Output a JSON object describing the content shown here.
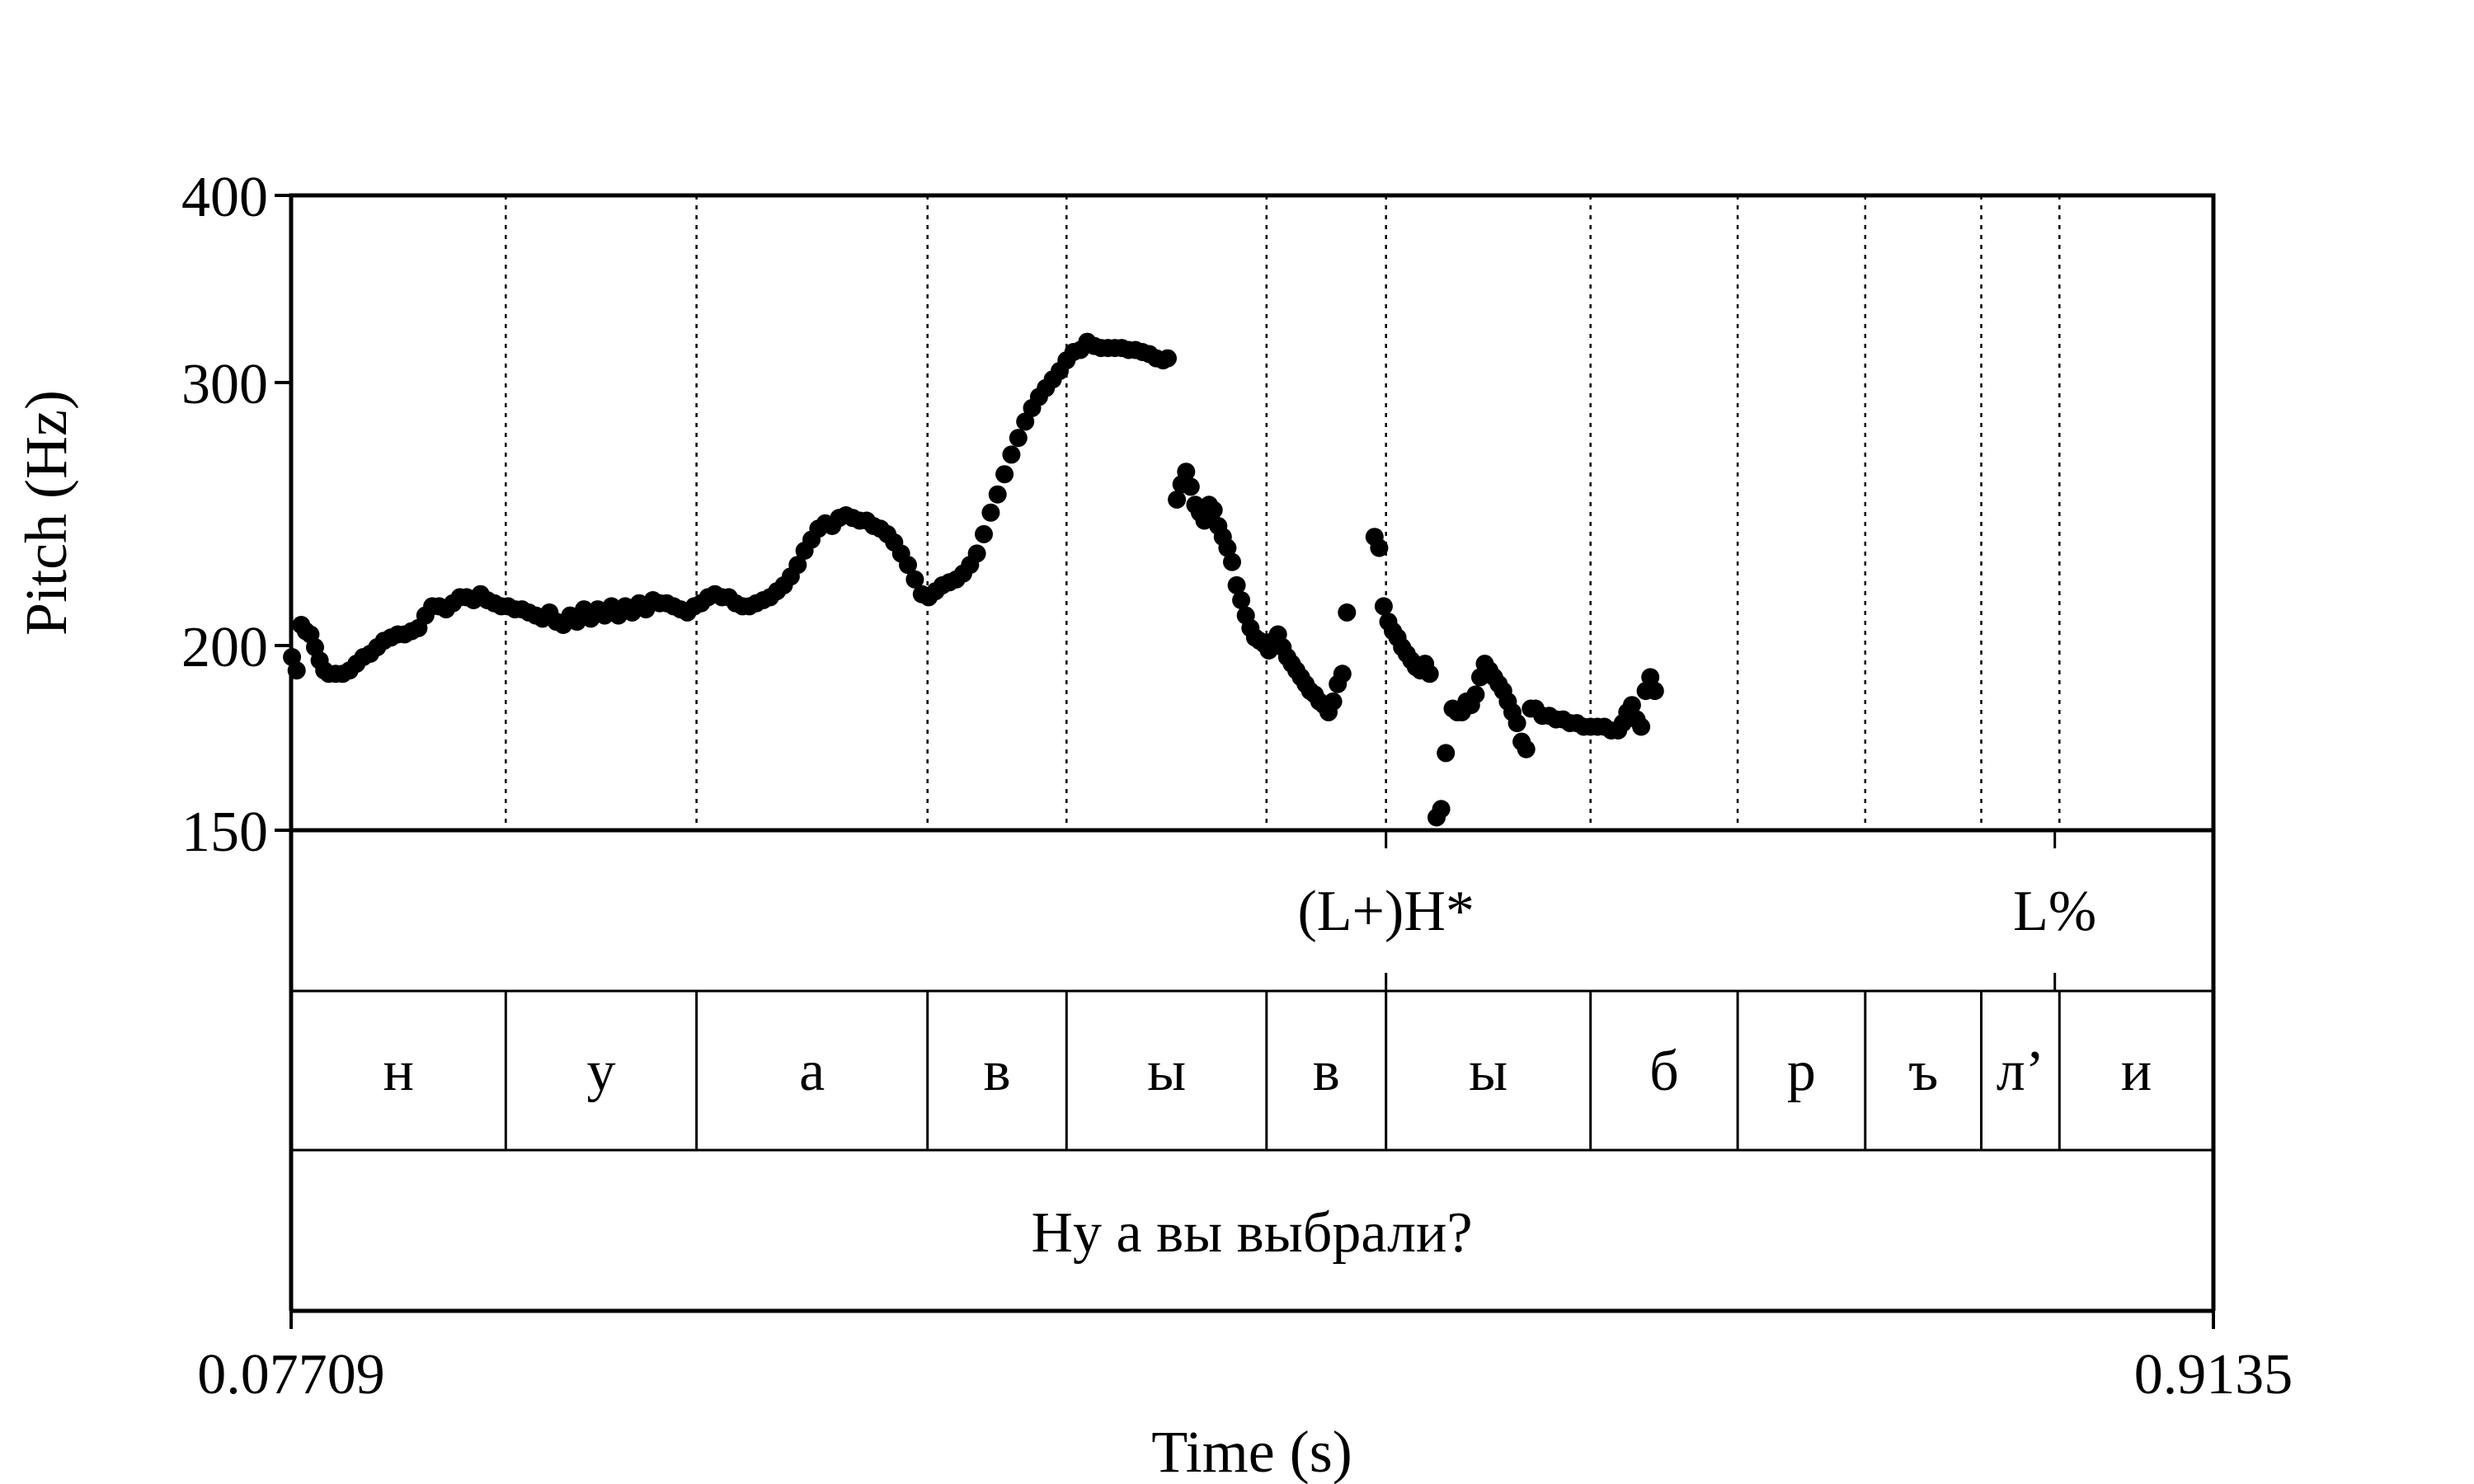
{
  "chart_data": {
    "type": "scatter",
    "title": "",
    "xlabel": "Time (s)",
    "ylabel": "Pitch (Hz)",
    "xlim": [
      0.07709,
      0.9135
    ],
    "ylim": [
      150,
      400
    ],
    "y_scale": "log",
    "x_tick_labels": [
      "0.07709",
      "0.9135"
    ],
    "y_ticks": [
      400,
      300,
      200,
      150
    ],
    "y_tick_labels": [
      "400",
      "300",
      "200",
      "150"
    ],
    "tones": {
      "labels": [
        {
          "text": "(L+)H*",
          "time": 0.5535
        },
        {
          "text": "L%",
          "time": 0.8445
        }
      ]
    },
    "segments": {
      "boundaries": [
        0.1705,
        0.2535,
        0.354,
        0.4145,
        0.5015,
        0.5535,
        0.6425,
        0.7065,
        0.762,
        0.8125,
        0.8465
      ],
      "labels": [
        "н",
        "у",
        "а",
        "в",
        "ы",
        "в",
        "ы",
        "б",
        "р",
        "ъ",
        "л’",
        "и"
      ]
    },
    "sentence": {
      "text": "Ну а вы выбрали?"
    },
    "pitch": {
      "points": [
        [
          0.0775,
          196
        ],
        [
          0.0795,
          192
        ],
        [
          0.0815,
          206
        ],
        [
          0.0835,
          204
        ],
        [
          0.0855,
          203
        ],
        [
          0.0875,
          199
        ],
        [
          0.0895,
          195
        ],
        [
          0.0915,
          192
        ],
        [
          0.0935,
          191
        ],
        [
          0.0965,
          191
        ],
        [
          0.0995,
          191
        ],
        [
          0.1025,
          192
        ],
        [
          0.1055,
          194
        ],
        [
          0.1085,
          196
        ],
        [
          0.1115,
          197
        ],
        [
          0.1145,
          199
        ],
        [
          0.1175,
          201
        ],
        [
          0.1205,
          202
        ],
        [
          0.1235,
          203
        ],
        [
          0.1265,
          203
        ],
        [
          0.1295,
          204
        ],
        [
          0.1325,
          205
        ],
        [
          0.1355,
          209
        ],
        [
          0.1385,
          212
        ],
        [
          0.1415,
          212
        ],
        [
          0.1445,
          211
        ],
        [
          0.1475,
          213
        ],
        [
          0.1505,
          215
        ],
        [
          0.1535,
          215
        ],
        [
          0.1565,
          214
        ],
        [
          0.1595,
          216
        ],
        [
          0.1625,
          214
        ],
        [
          0.1655,
          213
        ],
        [
          0.1685,
          212
        ],
        [
          0.1715,
          212
        ],
        [
          0.1745,
          211
        ],
        [
          0.1775,
          211
        ],
        [
          0.1805,
          210
        ],
        [
          0.1835,
          209
        ],
        [
          0.1865,
          208
        ],
        [
          0.1895,
          210
        ],
        [
          0.1925,
          207
        ],
        [
          0.1955,
          206
        ],
        [
          0.1985,
          209
        ],
        [
          0.2015,
          207
        ],
        [
          0.2045,
          211
        ],
        [
          0.2075,
          208
        ],
        [
          0.2105,
          211
        ],
        [
          0.2135,
          209
        ],
        [
          0.2165,
          212
        ],
        [
          0.2195,
          209
        ],
        [
          0.2225,
          212
        ],
        [
          0.2255,
          210
        ],
        [
          0.2285,
          213
        ],
        [
          0.2315,
          211
        ],
        [
          0.2345,
          214
        ],
        [
          0.2375,
          213
        ],
        [
          0.2405,
          213
        ],
        [
          0.2435,
          212
        ],
        [
          0.2465,
          211
        ],
        [
          0.2495,
          210
        ],
        [
          0.2525,
          212
        ],
        [
          0.2555,
          213
        ],
        [
          0.2585,
          215
        ],
        [
          0.2615,
          216
        ],
        [
          0.2645,
          215
        ],
        [
          0.2675,
          215
        ],
        [
          0.2705,
          213
        ],
        [
          0.2735,
          212
        ],
        [
          0.2765,
          212
        ],
        [
          0.2795,
          213
        ],
        [
          0.2825,
          214
        ],
        [
          0.2855,
          215
        ],
        [
          0.2885,
          217
        ],
        [
          0.2915,
          219
        ],
        [
          0.2945,
          222
        ],
        [
          0.2975,
          226
        ],
        [
          0.3005,
          231
        ],
        [
          0.3035,
          235
        ],
        [
          0.3065,
          239
        ],
        [
          0.3095,
          241
        ],
        [
          0.3125,
          240
        ],
        [
          0.3155,
          243
        ],
        [
          0.3185,
          244
        ],
        [
          0.3215,
          243
        ],
        [
          0.3245,
          242
        ],
        [
          0.3275,
          242
        ],
        [
          0.3305,
          240
        ],
        [
          0.3335,
          239
        ],
        [
          0.3365,
          237
        ],
        [
          0.3395,
          234
        ],
        [
          0.3425,
          230
        ],
        [
          0.3455,
          226
        ],
        [
          0.3485,
          221
        ],
        [
          0.3515,
          216
        ],
        [
          0.3545,
          215
        ],
        [
          0.3575,
          217
        ],
        [
          0.3605,
          219
        ],
        [
          0.3635,
          220
        ],
        [
          0.3665,
          221
        ],
        [
          0.3695,
          223
        ],
        [
          0.3725,
          226
        ],
        [
          0.3755,
          230
        ],
        [
          0.3785,
          237
        ],
        [
          0.3815,
          245
        ],
        [
          0.3845,
          252
        ],
        [
          0.3875,
          260
        ],
        [
          0.3905,
          268
        ],
        [
          0.3935,
          275
        ],
        [
          0.3965,
          282
        ],
        [
          0.3995,
          288
        ],
        [
          0.4025,
          293
        ],
        [
          0.4055,
          297
        ],
        [
          0.4085,
          301
        ],
        [
          0.4115,
          305
        ],
        [
          0.4145,
          310
        ],
        [
          0.4175,
          314
        ],
        [
          0.4205,
          315
        ],
        [
          0.4235,
          319
        ],
        [
          0.4265,
          317
        ],
        [
          0.4295,
          316
        ],
        [
          0.4325,
          316
        ],
        [
          0.4355,
          316
        ],
        [
          0.4385,
          316
        ],
        [
          0.4415,
          315
        ],
        [
          0.4445,
          315
        ],
        [
          0.4475,
          314
        ],
        [
          0.4505,
          313
        ],
        [
          0.4535,
          311
        ],
        [
          0.4565,
          310
        ],
        [
          0.4585,
          311
        ],
        [
          0.4625,
          250
        ],
        [
          0.4645,
          256
        ],
        [
          0.4665,
          261
        ],
        [
          0.4685,
          255
        ],
        [
          0.4705,
          248
        ],
        [
          0.4725,
          245
        ],
        [
          0.4745,
          242
        ],
        [
          0.4765,
          248
        ],
        [
          0.4785,
          246
        ],
        [
          0.4805,
          240
        ],
        [
          0.4825,
          236
        ],
        [
          0.4845,
          232
        ],
        [
          0.4865,
          227
        ],
        [
          0.4885,
          219
        ],
        [
          0.4905,
          214
        ],
        [
          0.4925,
          209
        ],
        [
          0.4945,
          205
        ],
        [
          0.4965,
          202
        ],
        [
          0.4985,
          201
        ],
        [
          0.5005,
          200
        ],
        [
          0.5025,
          198
        ],
        [
          0.5045,
          201
        ],
        [
          0.5065,
          203
        ],
        [
          0.5085,
          199
        ],
        [
          0.5105,
          196
        ],
        [
          0.5125,
          194
        ],
        [
          0.5145,
          192
        ],
        [
          0.5165,
          190
        ],
        [
          0.5185,
          188
        ],
        [
          0.5205,
          186
        ],
        [
          0.5225,
          185
        ],
        [
          0.5245,
          183
        ],
        [
          0.5265,
          182
        ],
        [
          0.5285,
          180
        ],
        [
          0.5305,
          183
        ],
        [
          0.5325,
          188
        ],
        [
          0.5345,
          191
        ],
        [
          0.5365,
          210
        ],
        [
          0.5485,
          236
        ],
        [
          0.5505,
          232
        ],
        [
          0.5525,
          212
        ],
        [
          0.5545,
          207
        ],
        [
          0.5565,
          204
        ],
        [
          0.5585,
          202
        ],
        [
          0.5605,
          199
        ],
        [
          0.5625,
          197
        ],
        [
          0.5645,
          195
        ],
        [
          0.5665,
          193
        ],
        [
          0.5685,
          192
        ],
        [
          0.5705,
          194
        ],
        [
          0.5725,
          191
        ],
        [
          0.5755,
          153
        ],
        [
          0.5775,
          155
        ],
        [
          0.5795,
          169
        ],
        [
          0.5825,
          181
        ],
        [
          0.5845,
          180
        ],
        [
          0.5865,
          180
        ],
        [
          0.5885,
          183
        ],
        [
          0.5905,
          182
        ],
        [
          0.5925,
          185
        ],
        [
          0.5945,
          190
        ],
        [
          0.5965,
          194
        ],
        [
          0.5985,
          192
        ],
        [
          0.6005,
          190
        ],
        [
          0.6025,
          188
        ],
        [
          0.6045,
          186
        ],
        [
          0.6065,
          183
        ],
        [
          0.6085,
          180
        ],
        [
          0.6105,
          177
        ],
        [
          0.6125,
          172
        ],
        [
          0.6145,
          170
        ],
        [
          0.6165,
          181
        ],
        [
          0.6185,
          181
        ],
        [
          0.6215,
          179
        ],
        [
          0.6245,
          179
        ],
        [
          0.6275,
          178
        ],
        [
          0.6305,
          178
        ],
        [
          0.6335,
          177
        ],
        [
          0.6365,
          177
        ],
        [
          0.6395,
          176
        ],
        [
          0.6425,
          176
        ],
        [
          0.6455,
          176
        ],
        [
          0.6485,
          176
        ],
        [
          0.6515,
          175
        ],
        [
          0.6545,
          175
        ],
        [
          0.6565,
          177
        ],
        [
          0.6585,
          180
        ],
        [
          0.6605,
          182
        ],
        [
          0.6625,
          178
        ],
        [
          0.6645,
          176
        ],
        [
          0.6665,
          186
        ],
        [
          0.6685,
          190
        ],
        [
          0.6705,
          186
        ]
      ]
    }
  }
}
